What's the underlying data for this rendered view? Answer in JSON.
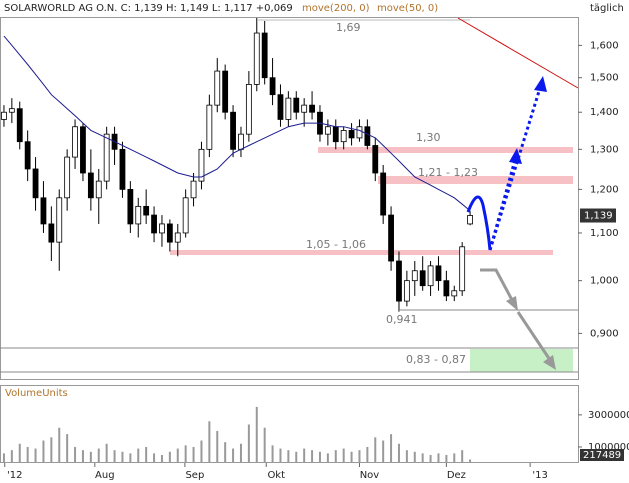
{
  "chart_data": {
    "type": "candlestick",
    "title": "SOLARWORLD AG O.N. C: 1,139 H: 1,149 L: 1,117 +0,069",
    "indicators": [
      "move(200, 0)",
      "move(50, 0)"
    ],
    "period": "täglich",
    "volume_label": "VolumeUnits",
    "log_scale": true,
    "ylim": [
      0.82,
      1.69
    ],
    "yticks": [
      {
        "value": 0.9,
        "label": "0,900"
      },
      {
        "value": 1.0,
        "label": "1,000"
      },
      {
        "value": 1.1,
        "label": "1,100"
      },
      {
        "value": 1.2,
        "label": "1,200"
      },
      {
        "value": 1.3,
        "label": "1,300"
      },
      {
        "value": 1.4,
        "label": "1,400"
      },
      {
        "value": 1.5,
        "label": "1,500"
      },
      {
        "value": 1.6,
        "label": "1,600"
      }
    ],
    "xlim": [
      -0.5,
      72.66
    ],
    "xticks": [
      {
        "value": 0.1,
        "label": "'12"
      },
      {
        "value": 11.5,
        "label": "Aug"
      },
      {
        "value": 22.9,
        "label": "Sep"
      },
      {
        "value": 33.2,
        "label": "Okt"
      },
      {
        "value": 45,
        "label": "Nov"
      },
      {
        "value": 56,
        "label": "Dez"
      },
      {
        "value": 66.6,
        "label": "'13"
      }
    ],
    "up_color": "#ffffff",
    "down_color": "#000000",
    "ohlc": [
      [
        1.38,
        1.42,
        1.36,
        1.4
      ],
      [
        1.4,
        1.44,
        1.37,
        1.41
      ],
      [
        1.41,
        1.43,
        1.3,
        1.32
      ],
      [
        1.32,
        1.35,
        1.22,
        1.25
      ],
      [
        1.25,
        1.28,
        1.15,
        1.18
      ],
      [
        1.18,
        1.22,
        1.1,
        1.12
      ],
      [
        1.12,
        1.16,
        1.04,
        1.08
      ],
      [
        1.08,
        1.2,
        1.02,
        1.18
      ],
      [
        1.18,
        1.3,
        1.15,
        1.28
      ],
      [
        1.28,
        1.38,
        1.25,
        1.36
      ],
      [
        1.36,
        1.37,
        1.22,
        1.24
      ],
      [
        1.24,
        1.3,
        1.15,
        1.18
      ],
      [
        1.18,
        1.25,
        1.12,
        1.22
      ],
      [
        1.22,
        1.36,
        1.2,
        1.34
      ],
      [
        1.34,
        1.36,
        1.26,
        1.3
      ],
      [
        1.3,
        1.32,
        1.18,
        1.2
      ],
      [
        1.2,
        1.22,
        1.1,
        1.12
      ],
      [
        1.12,
        1.18,
        1.09,
        1.16
      ],
      [
        1.16,
        1.2,
        1.12,
        1.14
      ],
      [
        1.14,
        1.16,
        1.08,
        1.1
      ],
      [
        1.1,
        1.14,
        1.07,
        1.12
      ],
      [
        1.12,
        1.13,
        1.06,
        1.08
      ],
      [
        1.08,
        1.12,
        1.05,
        1.1
      ],
      [
        1.1,
        1.2,
        1.09,
        1.18
      ],
      [
        1.18,
        1.24,
        1.16,
        1.22
      ],
      [
        1.22,
        1.32,
        1.2,
        1.3
      ],
      [
        1.3,
        1.45,
        1.28,
        1.42
      ],
      [
        1.42,
        1.56,
        1.4,
        1.52
      ],
      [
        1.52,
        1.54,
        1.38,
        1.4
      ],
      [
        1.4,
        1.42,
        1.28,
        1.3
      ],
      [
        1.3,
        1.36,
        1.28,
        1.34
      ],
      [
        1.34,
        1.52,
        1.32,
        1.48
      ],
      [
        1.48,
        1.69,
        1.46,
        1.64
      ],
      [
        1.64,
        1.68,
        1.48,
        1.5
      ],
      [
        1.5,
        1.56,
        1.42,
        1.45
      ],
      [
        1.45,
        1.48,
        1.36,
        1.38
      ],
      [
        1.38,
        1.46,
        1.36,
        1.44
      ],
      [
        1.44,
        1.46,
        1.38,
        1.4
      ],
      [
        1.4,
        1.44,
        1.36,
        1.42
      ],
      [
        1.42,
        1.46,
        1.38,
        1.4
      ],
      [
        1.4,
        1.42,
        1.32,
        1.34
      ],
      [
        1.34,
        1.38,
        1.31,
        1.36
      ],
      [
        1.36,
        1.38,
        1.3,
        1.32
      ],
      [
        1.32,
        1.36,
        1.3,
        1.35
      ],
      [
        1.35,
        1.37,
        1.31,
        1.33
      ],
      [
        1.33,
        1.38,
        1.32,
        1.36
      ],
      [
        1.36,
        1.38,
        1.3,
        1.31
      ],
      [
        1.31,
        1.33,
        1.22,
        1.24
      ],
      [
        1.24,
        1.26,
        1.12,
        1.14
      ],
      [
        1.14,
        1.16,
        1.02,
        1.04
      ],
      [
        1.04,
        1.06,
        0.94,
        0.96
      ],
      [
        0.96,
        1.02,
        0.95,
        1.0
      ],
      [
        1.0,
        1.04,
        0.97,
        1.02
      ],
      [
        1.02,
        1.05,
        0.98,
        0.99
      ],
      [
        0.99,
        1.04,
        0.97,
        1.03
      ],
      [
        1.03,
        1.05,
        0.98,
        1.0
      ],
      [
        1.0,
        1.02,
        0.96,
        0.97
      ],
      [
        0.97,
        0.99,
        0.96,
        0.98
      ],
      [
        0.98,
        1.08,
        0.97,
        1.07
      ],
      [
        1.12,
        1.149,
        1.117,
        1.139
      ]
    ],
    "series": [
      {
        "name": "move(200, 0)",
        "color": "#1c1c90",
        "values": [
          1.63,
          1.6,
          1.57,
          1.54,
          1.51,
          1.48,
          1.45,
          1.43,
          1.41,
          1.39,
          1.37,
          1.35,
          1.34,
          1.33,
          1.32,
          1.31,
          1.3,
          1.29,
          1.28,
          1.27,
          1.26,
          1.25,
          1.24,
          1.235,
          1.23,
          1.23,
          1.24,
          1.25,
          1.27,
          1.29,
          1.3,
          1.31,
          1.32,
          1.33,
          1.34,
          1.35,
          1.36,
          1.365,
          1.37,
          1.37,
          1.37,
          1.365,
          1.36,
          1.36,
          1.355,
          1.35,
          1.34,
          1.33,
          1.31,
          1.29,
          1.27,
          1.25,
          1.23,
          1.22,
          1.21,
          1.2,
          1.19,
          1.18,
          1.165,
          1.15
        ]
      }
    ],
    "last_price": 1.139,
    "last_price_label": "1,139",
    "annotations": [
      "1,69",
      "1,30",
      "1,21 - 1,23",
      "1,05 - 1,06",
      "0,941",
      "0,83 - 0,87"
    ],
    "volume": [
      600000,
      800000,
      1200000,
      1000000,
      900000,
      1400000,
      1600000,
      2200000,
      1800000,
      1000000,
      800000,
      700000,
      900000,
      1200000,
      800000,
      700000,
      600000,
      900000,
      1000000,
      600000,
      500000,
      700000,
      900000,
      1100000,
      1000000,
      1400000,
      2600000,
      2000000,
      1300000,
      900000,
      1200000,
      2400000,
      3500000,
      2200000,
      1100000,
      900000,
      800000,
      700000,
      900000,
      800000,
      700000,
      600000,
      800000,
      900000,
      700000,
      800000,
      1000000,
      1600000,
      1400000,
      1800000,
      1200000,
      800000,
      700000,
      600000,
      500000,
      600000,
      500000,
      600000,
      800000,
      217489
    ],
    "volume_color": "#999999",
    "volume_ylim": [
      0,
      4800000
    ],
    "volume_yticks": [
      1000000,
      3000000
    ],
    "last_volume_label": "217489"
  }
}
